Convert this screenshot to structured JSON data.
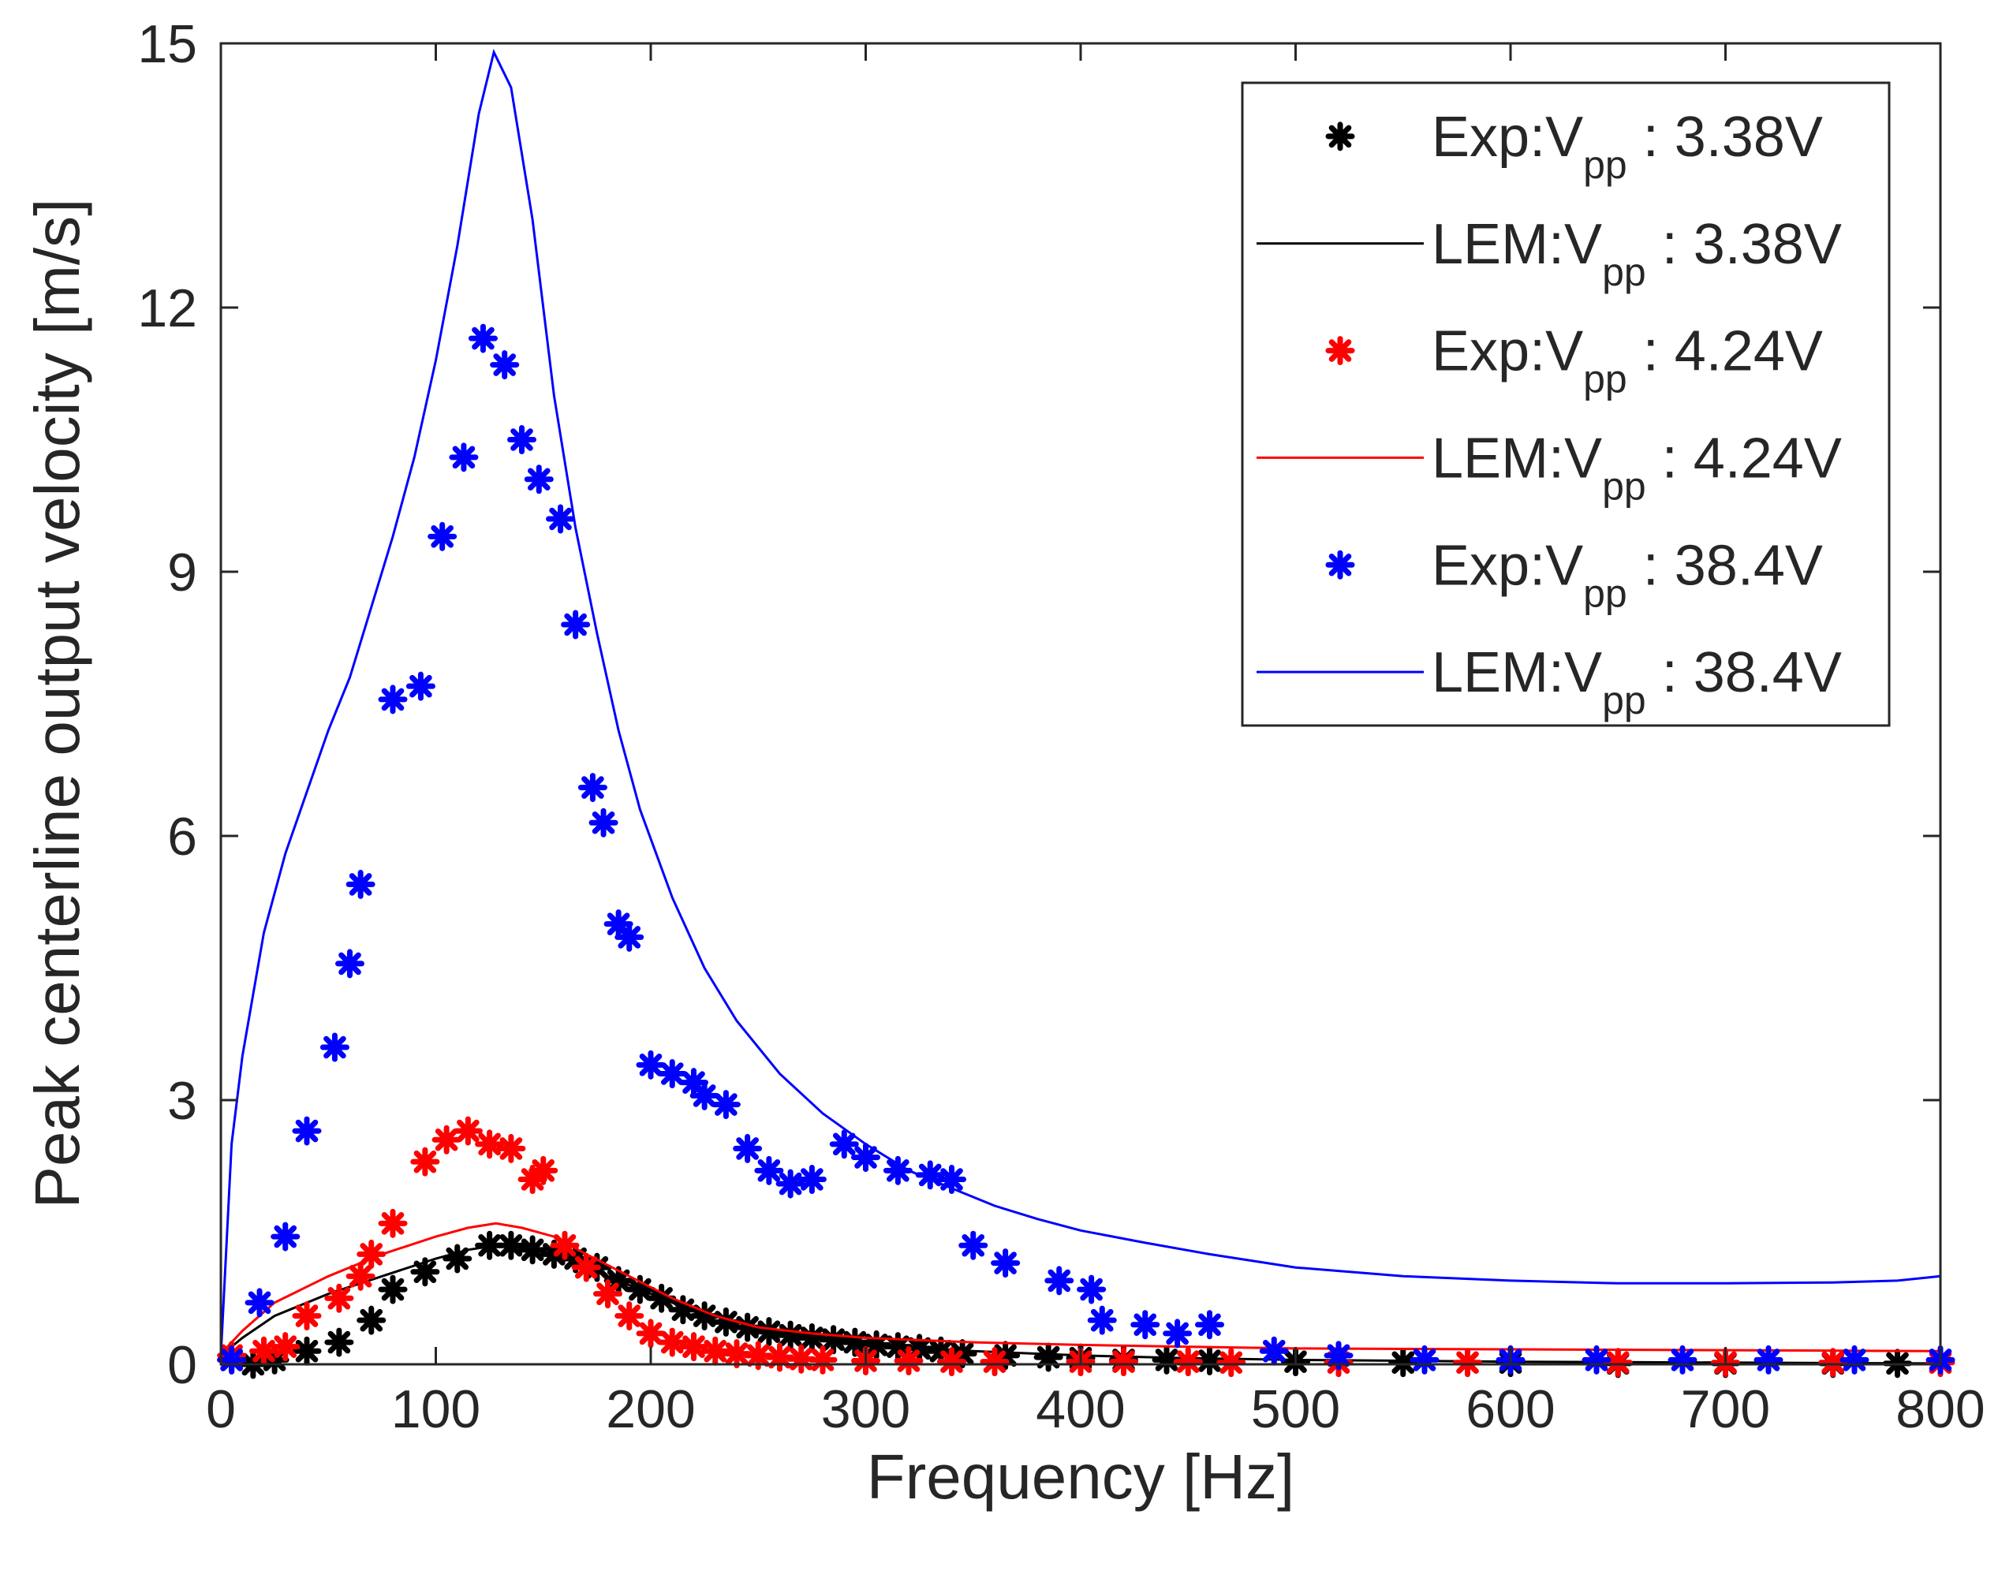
{
  "chart_data": {
    "type": "scatter",
    "title": "",
    "xlabel": "Frequency [Hz]",
    "ylabel": "Peak centerline output velocity [m/s]",
    "xlim": [
      0,
      800
    ],
    "ylim": [
      0,
      15
    ],
    "xticks": [
      0,
      100,
      200,
      300,
      400,
      500,
      600,
      700,
      800
    ],
    "yticks": [
      0,
      3,
      6,
      9,
      12,
      15
    ],
    "xtick_labels": [
      "0",
      "100",
      "200",
      "300",
      "400",
      "500",
      "600",
      "700",
      "800"
    ],
    "ytick_labels": [
      "0",
      "3",
      "6",
      "9",
      "12",
      "15"
    ],
    "grid": false,
    "legend_position": "top-right",
    "series": [
      {
        "name": "Exp:Vpp : 3.38V",
        "legend": {
          "prefix": "Exp:V",
          "sub": "pp",
          "suffix": " : 3.38V"
        },
        "kind": "markers",
        "color": "#000000",
        "x": [
          5,
          15,
          25,
          40,
          55,
          70,
          80,
          95,
          110,
          125,
          135,
          145,
          155,
          165,
          175,
          185,
          195,
          205,
          215,
          225,
          235,
          245,
          255,
          265,
          275,
          285,
          295,
          305,
          315,
          325,
          335,
          345,
          365,
          385,
          400,
          420,
          440,
          460,
          500,
          550,
          600,
          650,
          700,
          750,
          780
        ],
        "y": [
          0.05,
          0.0,
          0.05,
          0.15,
          0.25,
          0.5,
          0.85,
          1.05,
          1.2,
          1.35,
          1.35,
          1.3,
          1.25,
          1.2,
          1.1,
          0.95,
          0.85,
          0.75,
          0.62,
          0.55,
          0.48,
          0.42,
          0.37,
          0.33,
          0.3,
          0.28,
          0.25,
          0.22,
          0.2,
          0.18,
          0.15,
          0.12,
          0.1,
          0.08,
          0.07,
          0.05,
          0.05,
          0.04,
          0.03,
          0.02,
          0.02,
          0.01,
          0.01,
          0.01,
          0.01
        ]
      },
      {
        "name": "LEM:Vpp : 3.38V",
        "legend": {
          "prefix": "LEM:V",
          "sub": "pp",
          "suffix": " : 3.38V"
        },
        "kind": "line",
        "color": "#000000",
        "x": [
          0,
          10,
          25,
          50,
          75,
          100,
          115,
          128,
          140,
          155,
          170,
          190,
          210,
          230,
          250,
          275,
          300,
          350,
          400,
          450,
          500,
          600,
          700,
          800
        ],
        "y": [
          0.1,
          0.3,
          0.55,
          0.8,
          1.0,
          1.2,
          1.3,
          1.35,
          1.33,
          1.25,
          1.1,
          0.9,
          0.7,
          0.5,
          0.38,
          0.3,
          0.22,
          0.15,
          0.1,
          0.07,
          0.05,
          0.03,
          0.02,
          0.01
        ]
      },
      {
        "name": "Exp:Vpp : 4.24V",
        "legend": {
          "prefix": "Exp:V",
          "sub": "pp",
          "suffix": " : 4.24V"
        },
        "kind": "markers",
        "color": "#ff0000",
        "x": [
          5,
          20,
          30,
          40,
          55,
          65,
          70,
          80,
          95,
          105,
          115,
          125,
          135,
          145,
          150,
          160,
          170,
          180,
          190,
          200,
          210,
          220,
          230,
          240,
          250,
          260,
          270,
          280,
          300,
          320,
          340,
          360,
          400,
          420,
          450,
          470,
          520,
          580,
          650,
          700,
          750,
          800
        ],
        "y": [
          0.1,
          0.15,
          0.2,
          0.55,
          0.75,
          1.0,
          1.25,
          1.6,
          2.3,
          2.55,
          2.65,
          2.5,
          2.45,
          2.1,
          2.2,
          1.35,
          1.1,
          0.8,
          0.55,
          0.35,
          0.25,
          0.2,
          0.15,
          0.12,
          0.1,
          0.08,
          0.06,
          0.05,
          0.04,
          0.04,
          0.03,
          0.03,
          0.03,
          0.03,
          0.03,
          0.02,
          0.02,
          0.02,
          0.02,
          0.02,
          0.02,
          0.02
        ]
      },
      {
        "name": "LEM:Vpp : 4.24V",
        "legend": {
          "prefix": "LEM:V",
          "sub": "pp",
          "suffix": " : 4.24V"
        },
        "kind": "line",
        "color": "#ff0000",
        "x": [
          0,
          10,
          25,
          50,
          75,
          100,
          115,
          128,
          140,
          155,
          170,
          190,
          210,
          230,
          250,
          275,
          300,
          350,
          400,
          450,
          500,
          600,
          700,
          800
        ],
        "y": [
          0.12,
          0.38,
          0.7,
          1.0,
          1.25,
          1.45,
          1.55,
          1.6,
          1.55,
          1.45,
          1.25,
          1.0,
          0.75,
          0.55,
          0.42,
          0.35,
          0.3,
          0.25,
          0.22,
          0.2,
          0.18,
          0.17,
          0.16,
          0.15
        ]
      },
      {
        "name": "Exp:Vpp : 38.4V",
        "legend": {
          "prefix": "Exp:V",
          "sub": "pp",
          "suffix": " : 38.4V"
        },
        "kind": "markers",
        "color": "#0000ff",
        "x": [
          5,
          18,
          30,
          40,
          53,
          60,
          65,
          80,
          93,
          103,
          113,
          122,
          132,
          140,
          148,
          158,
          165,
          173,
          178,
          185,
          190,
          200,
          210,
          220,
          225,
          235,
          245,
          255,
          265,
          275,
          290,
          300,
          315,
          330,
          340,
          350,
          365,
          390,
          405,
          410,
          430,
          445,
          460,
          490,
          520,
          560,
          600,
          640,
          680,
          720,
          760,
          800
        ],
        "y": [
          0.05,
          0.7,
          1.45,
          2.65,
          3.6,
          4.55,
          5.45,
          7.55,
          7.7,
          9.4,
          10.3,
          11.65,
          11.35,
          10.5,
          10.05,
          9.6,
          8.4,
          6.55,
          6.15,
          5.0,
          4.85,
          3.4,
          3.3,
          3.2,
          3.05,
          2.95,
          2.45,
          2.2,
          2.05,
          2.1,
          2.5,
          2.35,
          2.2,
          2.15,
          2.1,
          1.35,
          1.15,
          0.95,
          0.85,
          0.5,
          0.45,
          0.35,
          0.45,
          0.15,
          0.1,
          0.05,
          0.05,
          0.05,
          0.05,
          0.05,
          0.05,
          0.05
        ]
      },
      {
        "name": "LEM:Vpp : 38.4V",
        "legend": {
          "prefix": "LEM:V",
          "sub": "pp",
          "suffix": " : 38.4V"
        },
        "kind": "line",
        "color": "#0000ff",
        "x": [
          0,
          5,
          10,
          20,
          30,
          40,
          50,
          60,
          70,
          80,
          90,
          100,
          110,
          120,
          127,
          135,
          145,
          155,
          165,
          175,
          185,
          195,
          210,
          225,
          240,
          260,
          280,
          300,
          320,
          340,
          360,
          380,
          400,
          430,
          460,
          500,
          550,
          600,
          650,
          700,
          750,
          780,
          800
        ],
        "y": [
          0.1,
          2.5,
          3.5,
          4.9,
          5.8,
          6.5,
          7.2,
          7.8,
          8.6,
          9.4,
          10.3,
          11.4,
          12.7,
          14.2,
          14.9,
          14.5,
          13.0,
          11.0,
          9.5,
          8.3,
          7.2,
          6.3,
          5.3,
          4.5,
          3.9,
          3.3,
          2.85,
          2.5,
          2.2,
          2.0,
          1.8,
          1.65,
          1.52,
          1.38,
          1.25,
          1.1,
          1.0,
          0.95,
          0.92,
          0.92,
          0.93,
          0.95,
          1.0
        ]
      }
    ]
  }
}
